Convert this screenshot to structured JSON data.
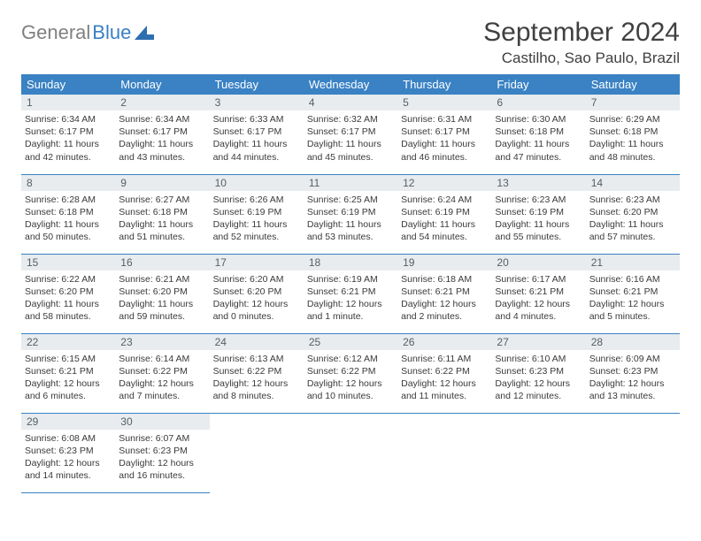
{
  "logo": {
    "text1": "General",
    "text2": "Blue"
  },
  "title": "September 2024",
  "location": "Castilho, Sao Paulo, Brazil",
  "colors": {
    "header_bg": "#3a82c4",
    "header_text": "#ffffff",
    "daynum_bg": "#e8ecee",
    "daynum_text": "#556066",
    "body_text": "#3a3a3a",
    "accent": "#3a7fc4"
  },
  "weekdays": [
    "Sunday",
    "Monday",
    "Tuesday",
    "Wednesday",
    "Thursday",
    "Friday",
    "Saturday"
  ],
  "weeks": [
    [
      {
        "n": 1,
        "sr": "6:34 AM",
        "ss": "6:17 PM",
        "dl": "11 hours and 42 minutes."
      },
      {
        "n": 2,
        "sr": "6:34 AM",
        "ss": "6:17 PM",
        "dl": "11 hours and 43 minutes."
      },
      {
        "n": 3,
        "sr": "6:33 AM",
        "ss": "6:17 PM",
        "dl": "11 hours and 44 minutes."
      },
      {
        "n": 4,
        "sr": "6:32 AM",
        "ss": "6:17 PM",
        "dl": "11 hours and 45 minutes."
      },
      {
        "n": 5,
        "sr": "6:31 AM",
        "ss": "6:17 PM",
        "dl": "11 hours and 46 minutes."
      },
      {
        "n": 6,
        "sr": "6:30 AM",
        "ss": "6:18 PM",
        "dl": "11 hours and 47 minutes."
      },
      {
        "n": 7,
        "sr": "6:29 AM",
        "ss": "6:18 PM",
        "dl": "11 hours and 48 minutes."
      }
    ],
    [
      {
        "n": 8,
        "sr": "6:28 AM",
        "ss": "6:18 PM",
        "dl": "11 hours and 50 minutes."
      },
      {
        "n": 9,
        "sr": "6:27 AM",
        "ss": "6:18 PM",
        "dl": "11 hours and 51 minutes."
      },
      {
        "n": 10,
        "sr": "6:26 AM",
        "ss": "6:19 PM",
        "dl": "11 hours and 52 minutes."
      },
      {
        "n": 11,
        "sr": "6:25 AM",
        "ss": "6:19 PM",
        "dl": "11 hours and 53 minutes."
      },
      {
        "n": 12,
        "sr": "6:24 AM",
        "ss": "6:19 PM",
        "dl": "11 hours and 54 minutes."
      },
      {
        "n": 13,
        "sr": "6:23 AM",
        "ss": "6:19 PM",
        "dl": "11 hours and 55 minutes."
      },
      {
        "n": 14,
        "sr": "6:23 AM",
        "ss": "6:20 PM",
        "dl": "11 hours and 57 minutes."
      }
    ],
    [
      {
        "n": 15,
        "sr": "6:22 AM",
        "ss": "6:20 PM",
        "dl": "11 hours and 58 minutes."
      },
      {
        "n": 16,
        "sr": "6:21 AM",
        "ss": "6:20 PM",
        "dl": "11 hours and 59 minutes."
      },
      {
        "n": 17,
        "sr": "6:20 AM",
        "ss": "6:20 PM",
        "dl": "12 hours and 0 minutes."
      },
      {
        "n": 18,
        "sr": "6:19 AM",
        "ss": "6:21 PM",
        "dl": "12 hours and 1 minute."
      },
      {
        "n": 19,
        "sr": "6:18 AM",
        "ss": "6:21 PM",
        "dl": "12 hours and 2 minutes."
      },
      {
        "n": 20,
        "sr": "6:17 AM",
        "ss": "6:21 PM",
        "dl": "12 hours and 4 minutes."
      },
      {
        "n": 21,
        "sr": "6:16 AM",
        "ss": "6:21 PM",
        "dl": "12 hours and 5 minutes."
      }
    ],
    [
      {
        "n": 22,
        "sr": "6:15 AM",
        "ss": "6:21 PM",
        "dl": "12 hours and 6 minutes."
      },
      {
        "n": 23,
        "sr": "6:14 AM",
        "ss": "6:22 PM",
        "dl": "12 hours and 7 minutes."
      },
      {
        "n": 24,
        "sr": "6:13 AM",
        "ss": "6:22 PM",
        "dl": "12 hours and 8 minutes."
      },
      {
        "n": 25,
        "sr": "6:12 AM",
        "ss": "6:22 PM",
        "dl": "12 hours and 10 minutes."
      },
      {
        "n": 26,
        "sr": "6:11 AM",
        "ss": "6:22 PM",
        "dl": "12 hours and 11 minutes."
      },
      {
        "n": 27,
        "sr": "6:10 AM",
        "ss": "6:23 PM",
        "dl": "12 hours and 12 minutes."
      },
      {
        "n": 28,
        "sr": "6:09 AM",
        "ss": "6:23 PM",
        "dl": "12 hours and 13 minutes."
      }
    ],
    [
      {
        "n": 29,
        "sr": "6:08 AM",
        "ss": "6:23 PM",
        "dl": "12 hours and 14 minutes."
      },
      {
        "n": 30,
        "sr": "6:07 AM",
        "ss": "6:23 PM",
        "dl": "12 hours and 16 minutes."
      },
      null,
      null,
      null,
      null,
      null
    ]
  ],
  "labels": {
    "sunrise": "Sunrise:",
    "sunset": "Sunset:",
    "daylight": "Daylight:"
  }
}
